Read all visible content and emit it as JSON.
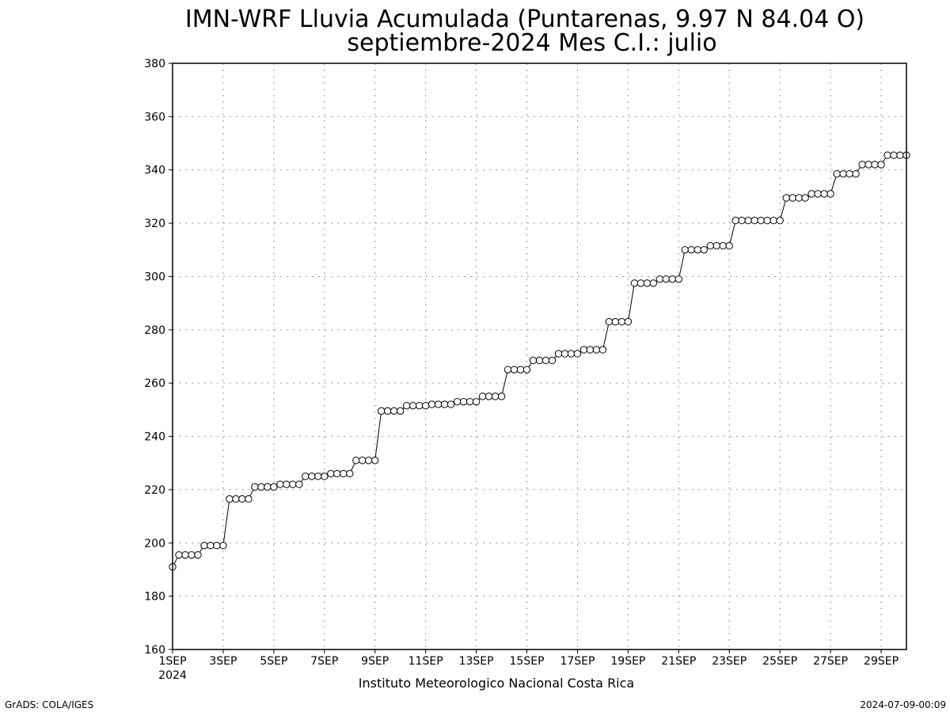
{
  "chart_data": {
    "type": "line",
    "title": "IMN-WRF  Lluvia Acumulada (Puntarenas, 9.97  N 84.04  O)",
    "subtitle": "septiembre-2024 Mes C.I.: julio",
    "xlabel": "",
    "ylabel": "",
    "ylim": [
      160,
      380
    ],
    "yticks": [
      160,
      180,
      200,
      220,
      240,
      260,
      280,
      300,
      320,
      340,
      360,
      380
    ],
    "xlim": [
      1,
      30
    ],
    "xticks": [
      {
        "day": 1,
        "label": "1SEP"
      },
      {
        "day": 3,
        "label": "3SEP"
      },
      {
        "day": 5,
        "label": "5SEP"
      },
      {
        "day": 7,
        "label": "7SEP"
      },
      {
        "day": 9,
        "label": "9SEP"
      },
      {
        "day": 11,
        "label": "11SEP"
      },
      {
        "day": 13,
        "label": "13SEP"
      },
      {
        "day": 15,
        "label": "15SEP"
      },
      {
        "day": 17,
        "label": "17SEP"
      },
      {
        "day": 19,
        "label": "19SEP"
      },
      {
        "day": 21,
        "label": "21SEP"
      },
      {
        "day": 23,
        "label": "23SEP"
      },
      {
        "day": 25,
        "label": "25SEP"
      },
      {
        "day": 27,
        "label": "27SEP"
      },
      {
        "day": 29,
        "label": "29SEP"
      }
    ],
    "year_label": "2024",
    "grid": true,
    "marker": "open-circle",
    "series": [
      {
        "values": [
          191,
          195.5,
          195.5,
          195.5,
          195.5,
          199,
          199,
          199,
          199,
          216.5,
          216.5,
          216.5,
          216.5,
          221,
          221,
          221,
          221,
          222,
          222,
          222,
          222,
          225,
          225,
          225,
          225,
          226,
          226,
          226,
          226,
          231,
          231,
          231,
          231,
          249.5,
          249.5,
          249.5,
          249.5,
          251.5,
          251.5,
          251.5,
          251.5,
          252,
          252,
          252,
          252,
          253,
          253,
          253,
          253,
          255,
          255,
          255,
          255,
          265,
          265,
          265,
          265,
          268.5,
          268.5,
          268.5,
          268.5,
          271,
          271,
          271,
          271,
          272.5,
          272.5,
          272.5,
          272.5,
          283,
          283,
          283,
          283,
          297.5,
          297.5,
          297.5,
          297.5,
          299,
          299,
          299,
          299,
          310,
          310,
          310,
          310,
          311.5,
          311.5,
          311.5,
          311.5,
          321,
          321,
          321,
          321,
          321,
          321,
          321,
          321,
          329.5,
          329.5,
          329.5,
          329.5,
          331,
          331,
          331,
          331,
          338.5,
          338.5,
          338.5,
          338.5,
          342,
          342,
          342,
          342,
          345.5,
          345.5,
          345.5,
          345.5
        ]
      }
    ]
  },
  "footer": {
    "institution": "Instituto Meteorologico Nacional Costa Rica",
    "left_credit": "GrADS: COLA/IGES",
    "right_timestamp": "2024-07-09-00:09"
  }
}
